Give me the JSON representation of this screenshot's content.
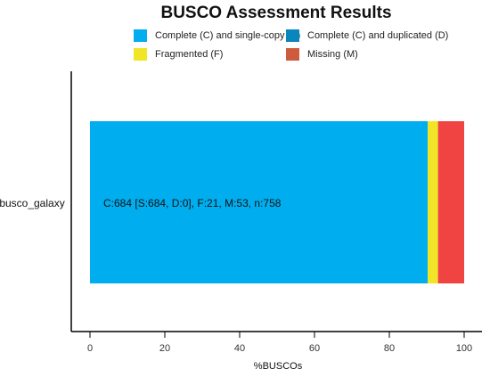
{
  "chart_data": {
    "type": "bar",
    "orientation": "horizontal",
    "stacked": true,
    "title": "BUSCO Assessment Results",
    "xlabel": "%BUSCOs",
    "ylabel": "",
    "xlim": [
      0,
      100
    ],
    "x_ticks": [
      0,
      20,
      40,
      60,
      80,
      100
    ],
    "categories": [
      "busco_galaxy"
    ],
    "series": [
      {
        "name": "Complete (C) and single-copy (S)",
        "values": [
          90.24
        ],
        "color": "#00AEEF"
      },
      {
        "name": "Complete (C) and duplicated (D)",
        "values": [
          0.0
        ],
        "color": "#0A86BF"
      },
      {
        "name": "Fragmented (F)",
        "values": [
          2.77
        ],
        "color": "#F0E527"
      },
      {
        "name": "Missing (M)",
        "values": [
          6.99
        ],
        "color": "#F04442"
      }
    ],
    "annotation": "C:684 [S:684, D:0], F:21, M:53, n:758",
    "legend_position": "top",
    "grid": false
  }
}
